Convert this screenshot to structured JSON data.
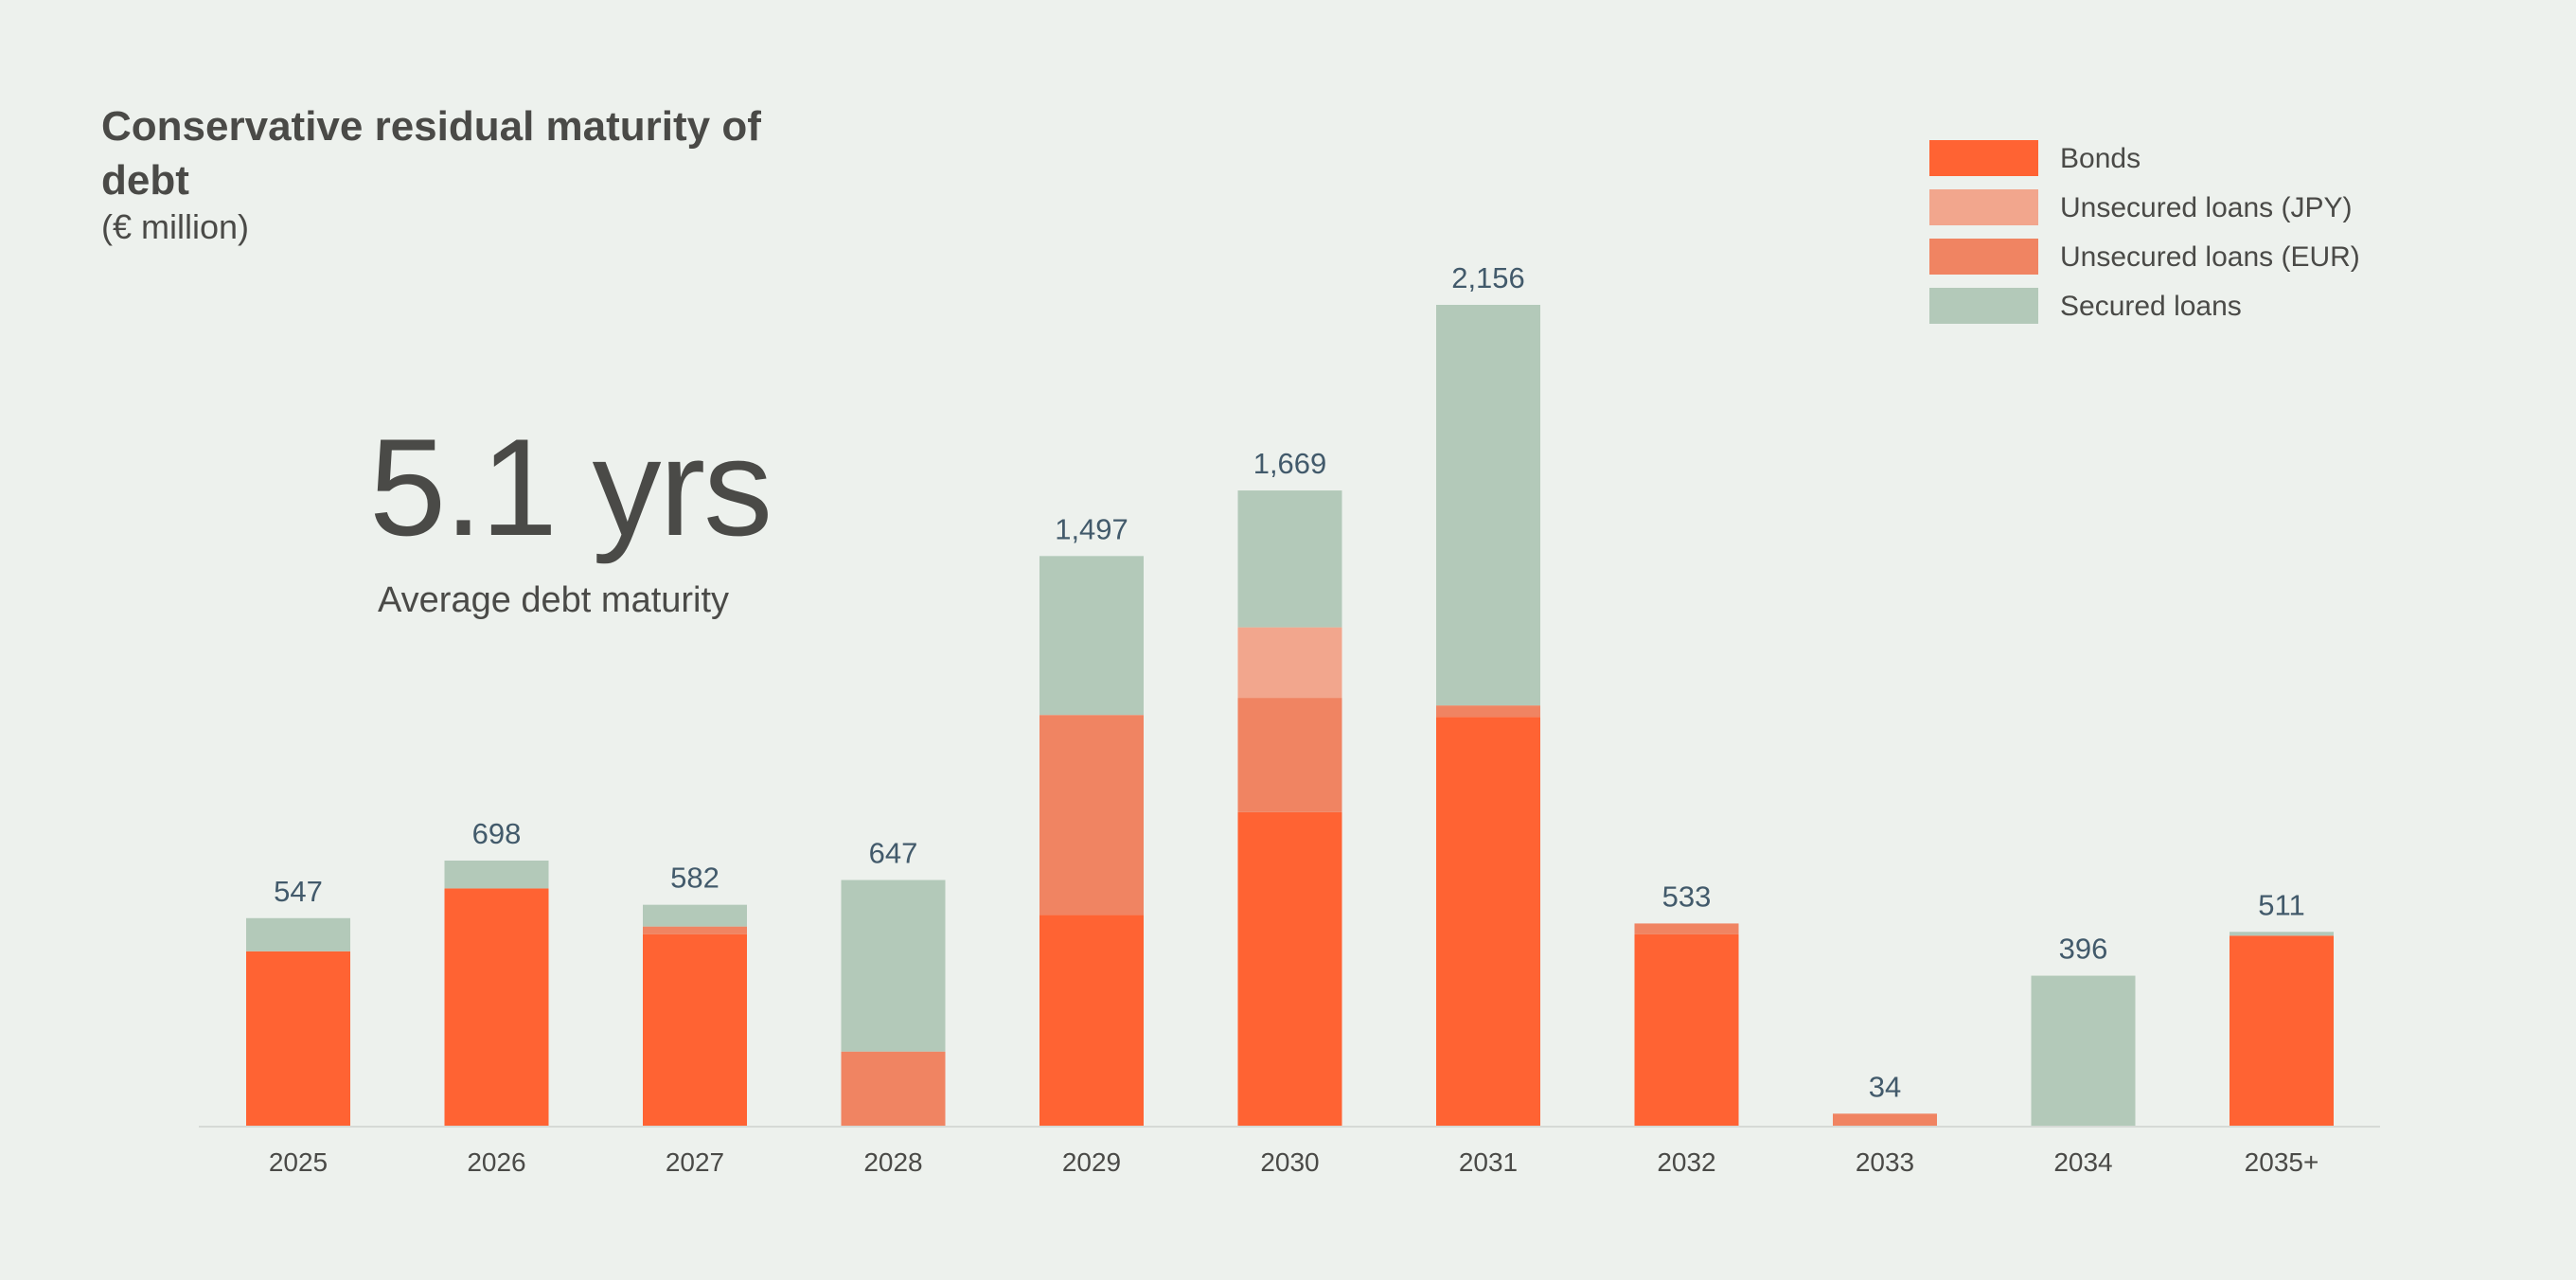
{
  "header": {
    "title": "Conservative residual maturity of debt",
    "subtitle": "(€ million)"
  },
  "kpi": {
    "value": "5.1 yrs",
    "label": "Average debt maturity"
  },
  "legend": [
    {
      "label": "Bonds",
      "color": "#ff6333"
    },
    {
      "label": "Unsecured loans (JPY)",
      "color": "#f2a68d"
    },
    {
      "label": "Unsecured loans (EUR)",
      "color": "#f08462"
    },
    {
      "label": "Secured loans",
      "color": "#b3c9b9"
    }
  ],
  "chart_data": {
    "type": "bar",
    "stacked": true,
    "categories": [
      "2025",
      "2026",
      "2027",
      "2028",
      "2029",
      "2030",
      "2031",
      "2032",
      "2033",
      "2034",
      "2035+"
    ],
    "series": [
      {
        "name": "Bonds",
        "color": "#ff6333",
        "values": [
          460,
          625,
          505,
          0,
          555,
          825,
          1075,
          505,
          0,
          0,
          501
        ]
      },
      {
        "name": "Unsecured loans (EUR)",
        "color": "#f08462",
        "values": [
          0,
          0,
          20,
          197,
          525,
          300,
          30,
          28,
          34,
          0,
          0
        ]
      },
      {
        "name": "Unsecured loans (JPY)",
        "color": "#f2a68d",
        "values": [
          0,
          0,
          0,
          0,
          0,
          185,
          0,
          0,
          0,
          0,
          0
        ]
      },
      {
        "name": "Secured loans",
        "color": "#b3c9b9",
        "values": [
          87,
          73,
          57,
          450,
          417,
          359,
          1051,
          0,
          0,
          396,
          10
        ]
      }
    ],
    "totals": [
      547,
      698,
      582,
      647,
      1497,
      1669,
      2156,
      533,
      34,
      396,
      511
    ],
    "total_labels": [
      "547",
      "698",
      "582",
      "647",
      "1,497",
      "1,669",
      "2,156",
      "533",
      "34",
      "396",
      "511"
    ],
    "ylim": [
      0,
      2156
    ],
    "grid": false,
    "legend_position": "top-right",
    "xlabel": "",
    "ylabel": ""
  }
}
